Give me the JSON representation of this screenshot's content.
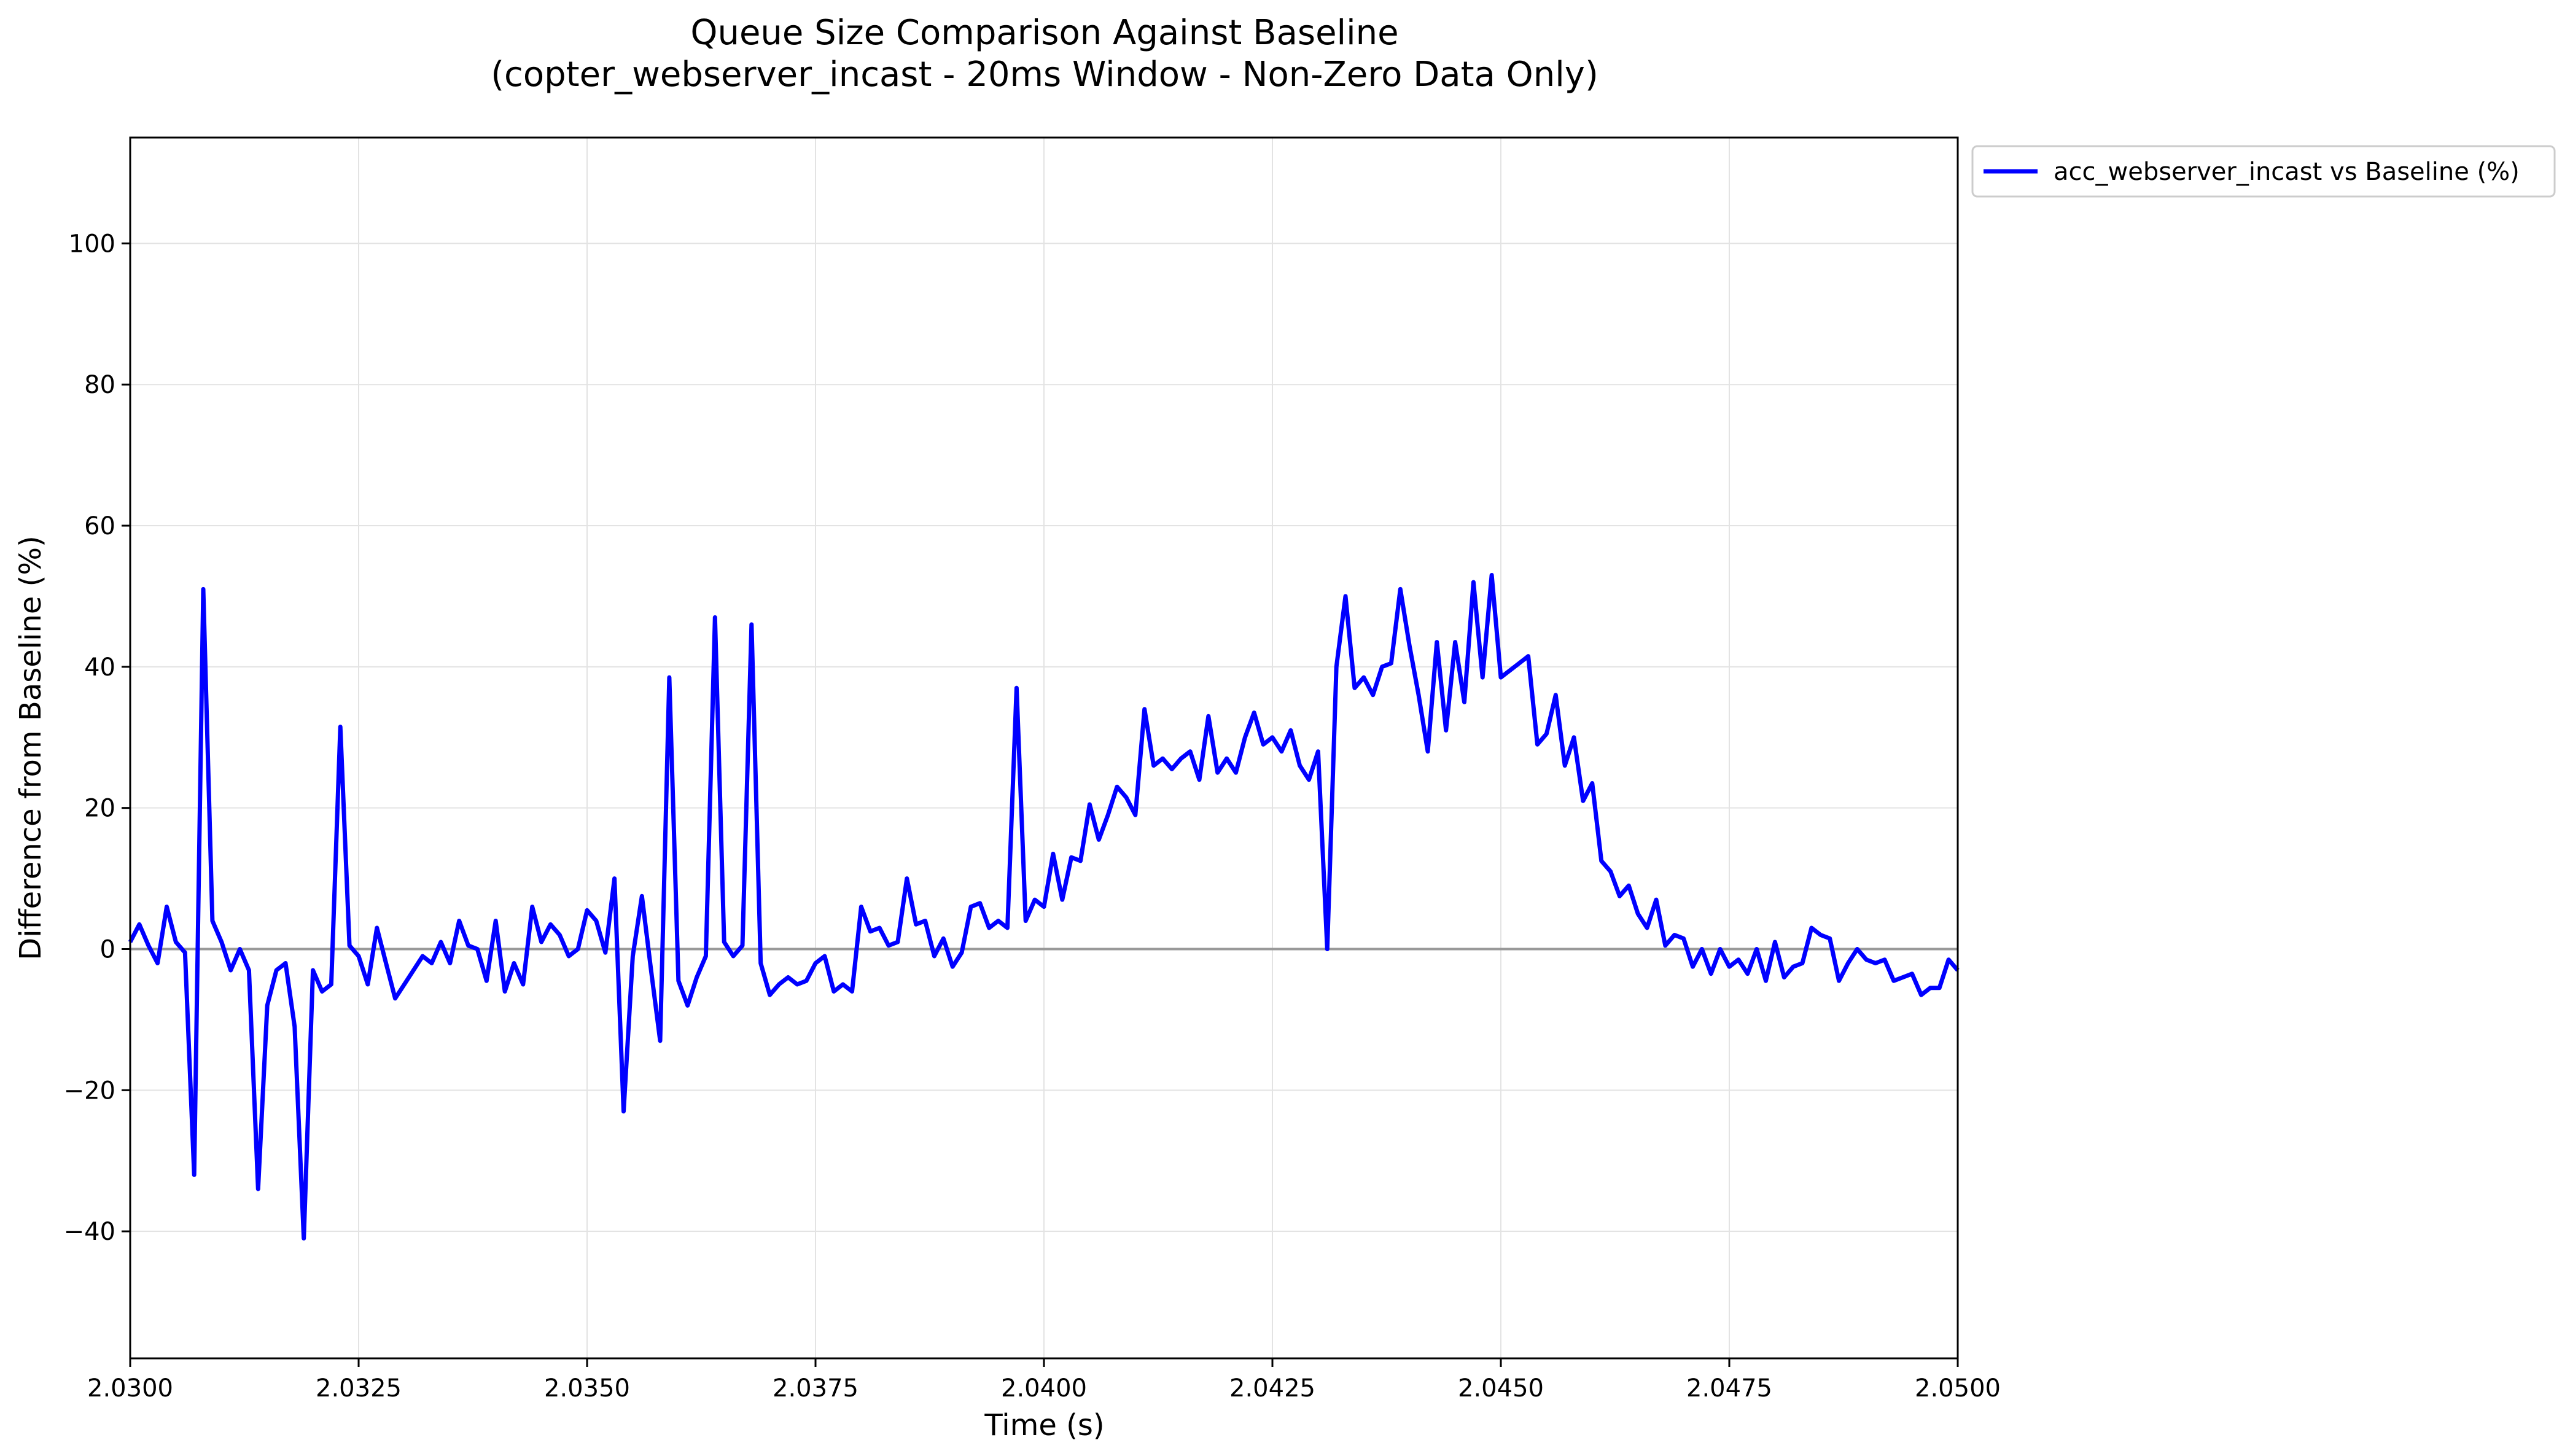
{
  "chart_data": {
    "type": "line",
    "title": "Queue Size Comparison Against Baseline",
    "subtitle": "(copter_webserver_incast - 20ms Window - Non-Zero Data Only)",
    "xlabel": "Time (s)",
    "ylabel": "Difference from Baseline (%)",
    "xlim": [
      2.03,
      2.05
    ],
    "ylim": [
      -58,
      115
    ],
    "xticks": [
      2.03,
      2.0325,
      2.035,
      2.0375,
      2.04,
      2.0425,
      2.045,
      2.0475,
      2.05
    ],
    "xtick_labels": [
      "2.0300",
      "2.0325",
      "2.0350",
      "2.0375",
      "2.0400",
      "2.0425",
      "2.0450",
      "2.0475",
      "2.0500"
    ],
    "yticks": [
      -40,
      -20,
      0,
      20,
      40,
      60,
      80,
      100
    ],
    "ytick_labels": [
      "−40",
      "−20",
      "0",
      "20",
      "40",
      "60",
      "80",
      "100"
    ],
    "grid": true,
    "baseline": 0,
    "baseline_color": "#999999",
    "legend_position": "outside-top-right",
    "series": [
      {
        "name": "acc_webserver_incast vs Baseline (%)",
        "color": "#0000ff",
        "x_start": 2.03,
        "x_step": 0.0001,
        "values": [
          1,
          3.5,
          0.5,
          -2,
          6,
          1,
          -0.5,
          -32,
          51,
          4,
          1,
          -3,
          0,
          -3,
          -34,
          -8,
          -3,
          -2,
          -11,
          -41,
          -3,
          -6,
          -5,
          31.5,
          0.5,
          -1,
          -5,
          3,
          -2,
          -7,
          -5,
          -3,
          -1,
          -2,
          1,
          -2,
          4,
          0.5,
          0,
          -4.5,
          4,
          -6,
          -2,
          -5,
          6,
          1,
          3.5,
          2,
          -1,
          0,
          5.5,
          4,
          -0.5,
          10,
          -23,
          -1,
          7.5,
          -3,
          -13,
          38.5,
          -4.5,
          -8,
          -4,
          -1,
          47,
          1,
          -1,
          0.5,
          46,
          -2,
          -6.5,
          -5,
          -4,
          -5,
          -4.5,
          -2,
          -1,
          -6,
          -5,
          -6,
          6,
          2.5,
          3,
          0.5,
          1,
          10,
          3.5,
          4,
          -1,
          1.5,
          -2.5,
          -0.5,
          6,
          6.5,
          3,
          4,
          3,
          37,
          4,
          7,
          6,
          13.5,
          7,
          13,
          12.5,
          20.5,
          15.5,
          19,
          23,
          21.5,
          19,
          34,
          26,
          27,
          25.5,
          27,
          28,
          24,
          33,
          25,
          27,
          25,
          30,
          33.5,
          29,
          30,
          28,
          31,
          26,
          24,
          28,
          0,
          40,
          50,
          37,
          38.5,
          36,
          40,
          40.5,
          51,
          43,
          36,
          28,
          43.5,
          31,
          43.5,
          35,
          52,
          38.5,
          53,
          38.5,
          39.5,
          40.5,
          41.5,
          29,
          30.5,
          36,
          26,
          30,
          21,
          23.5,
          12.5,
          11,
          7.5,
          9,
          5,
          3,
          7,
          0.5,
          2,
          1.5,
          -2.5,
          0,
          -3.5,
          0,
          -2.5,
          -1.5,
          -3.5,
          0,
          -4.5,
          1,
          -4,
          -2.5,
          -2,
          3,
          2,
          1.5,
          -4.5,
          -2,
          0,
          -1.5,
          -2,
          -1.5,
          -4.5,
          -4,
          -3.5,
          -6.5,
          -5.5,
          -5.5,
          -1.5,
          -3
        ]
      }
    ]
  }
}
